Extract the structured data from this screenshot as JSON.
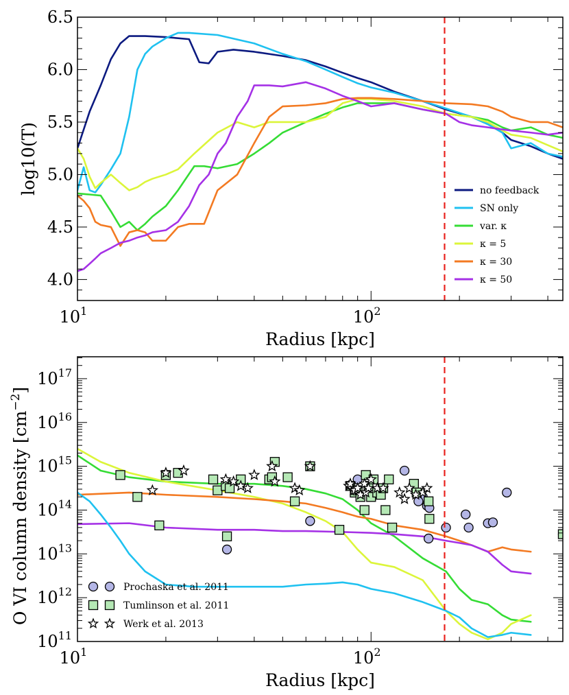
{
  "chart_data": [
    {
      "type": "line",
      "name": "temperature-profile",
      "xscale": "log",
      "xlim": [
        10,
        450
      ],
      "ylim": [
        3.8,
        6.5
      ],
      "xlabel": "Radius [kpc]",
      "ylabel": "log10(T)",
      "xticks": [
        {
          "value": 10,
          "base": "10",
          "exp": "1"
        },
        {
          "value": 100,
          "base": "10",
          "exp": "2"
        }
      ],
      "yticks": [
        {
          "value": 4.0,
          "label": "4.0"
        },
        {
          "value": 4.5,
          "label": "4.5"
        },
        {
          "value": 5.0,
          "label": "5.0"
        },
        {
          "value": 5.5,
          "label": "5.5"
        },
        {
          "value": 6.0,
          "label": "6.0"
        },
        {
          "value": 6.5,
          "label": "6.5"
        }
      ],
      "vline": {
        "x": 178,
        "color": "#e8201c"
      },
      "legend_position": "lower-right",
      "series": [
        {
          "name": "no feedback",
          "color": "#0c1a80",
          "x": [
            10,
            11,
            12,
            13,
            14,
            15,
            17,
            20,
            24,
            26,
            28,
            30,
            34,
            40,
            50,
            60,
            70,
            80,
            90,
            100,
            120,
            150,
            180,
            220,
            250,
            280,
            300,
            350,
            400,
            450
          ],
          "y": [
            5.25,
            5.6,
            5.85,
            6.1,
            6.25,
            6.32,
            6.32,
            6.31,
            6.29,
            6.07,
            6.06,
            6.17,
            6.19,
            6.17,
            6.13,
            6.09,
            6.03,
            5.97,
            5.92,
            5.88,
            5.79,
            5.7,
            5.62,
            5.55,
            5.48,
            5.4,
            5.33,
            5.27,
            5.2,
            5.15
          ]
        },
        {
          "name": "SN only",
          "color": "#1fc1f0",
          "x": [
            10,
            10.5,
            11,
            11.5,
            12,
            13,
            14,
            15,
            16,
            17,
            18,
            20,
            22,
            24,
            30,
            40,
            50,
            60,
            70,
            80,
            90,
            100,
            120,
            150,
            180,
            220,
            250,
            280,
            300,
            350,
            400,
            450
          ],
          "y": [
            4.85,
            5.07,
            4.85,
            4.83,
            4.9,
            5.05,
            5.2,
            5.55,
            6.0,
            6.15,
            6.22,
            6.3,
            6.35,
            6.35,
            6.33,
            6.25,
            6.15,
            6.08,
            6.0,
            5.93,
            5.87,
            5.83,
            5.78,
            5.7,
            5.63,
            5.55,
            5.48,
            5.4,
            5.25,
            5.3,
            5.2,
            5.17
          ]
        },
        {
          "name": "var. κ",
          "color": "#35dc35",
          "x": [
            10,
            11,
            12,
            13,
            14,
            15,
            16,
            17,
            18,
            20,
            22,
            25,
            27,
            30,
            35,
            40,
            45,
            50,
            60,
            70,
            80,
            90,
            100,
            120,
            150,
            180,
            220,
            250,
            280,
            300,
            350,
            400,
            450
          ],
          "y": [
            4.82,
            4.81,
            4.8,
            4.65,
            4.5,
            4.55,
            4.47,
            4.53,
            4.6,
            4.7,
            4.85,
            5.08,
            5.08,
            5.06,
            5.1,
            5.2,
            5.3,
            5.4,
            5.5,
            5.58,
            5.64,
            5.68,
            5.68,
            5.68,
            5.62,
            5.58,
            5.55,
            5.52,
            5.45,
            5.42,
            5.45,
            5.38,
            5.35
          ]
        },
        {
          "name": "κ = 5",
          "color": "#dcf53a",
          "x": [
            10,
            10.5,
            11,
            11.5,
            12,
            13,
            14,
            15,
            16,
            17,
            18,
            20,
            22,
            25,
            30,
            35,
            40,
            45,
            50,
            60,
            70,
            80,
            90,
            100,
            120,
            150,
            180,
            220,
            250,
            280,
            300,
            350,
            400,
            450
          ],
          "y": [
            5.25,
            5.15,
            4.98,
            4.87,
            4.92,
            5.0,
            4.92,
            4.85,
            4.88,
            4.93,
            4.96,
            5.0,
            5.05,
            5.2,
            5.4,
            5.5,
            5.45,
            5.5,
            5.5,
            5.5,
            5.55,
            5.68,
            5.72,
            5.72,
            5.7,
            5.65,
            5.58,
            5.55,
            5.5,
            5.42,
            5.38,
            5.35,
            5.28,
            5.22
          ]
        },
        {
          "name": "κ = 30",
          "color": "#f37a22",
          "x": [
            10,
            10.5,
            11,
            11.5,
            12,
            13,
            14,
            15,
            16,
            17,
            18,
            19,
            20,
            22,
            24,
            27,
            30,
            35,
            40,
            45,
            50,
            60,
            70,
            80,
            90,
            100,
            120,
            150,
            180,
            220,
            250,
            280,
            300,
            350,
            400,
            450
          ],
          "y": [
            4.8,
            4.75,
            4.68,
            4.55,
            4.52,
            4.5,
            4.32,
            4.45,
            4.47,
            4.45,
            4.37,
            4.37,
            4.37,
            4.5,
            4.53,
            4.53,
            4.85,
            5.0,
            5.3,
            5.55,
            5.65,
            5.66,
            5.68,
            5.72,
            5.73,
            5.73,
            5.72,
            5.7,
            5.68,
            5.67,
            5.65,
            5.6,
            5.55,
            5.5,
            5.5,
            5.45
          ]
        },
        {
          "name": "κ = 50",
          "color": "#a531e6",
          "x": [
            10,
            10.5,
            11,
            11.5,
            12,
            13,
            14,
            15,
            16,
            17,
            18,
            20,
            22,
            24,
            26,
            28,
            30,
            32,
            35,
            38,
            40,
            45,
            50,
            60,
            70,
            80,
            90,
            100,
            120,
            150,
            180,
            200,
            220,
            250,
            280,
            300,
            350,
            400,
            450
          ],
          "y": [
            4.08,
            4.1,
            4.15,
            4.2,
            4.25,
            4.3,
            4.35,
            4.37,
            4.4,
            4.42,
            4.45,
            4.47,
            4.55,
            4.7,
            4.9,
            5.0,
            5.2,
            5.3,
            5.55,
            5.7,
            5.85,
            5.85,
            5.84,
            5.88,
            5.82,
            5.75,
            5.7,
            5.65,
            5.68,
            5.62,
            5.58,
            5.5,
            5.47,
            5.45,
            5.43,
            5.42,
            5.4,
            5.38,
            5.4
          ]
        }
      ]
    },
    {
      "type": "line",
      "name": "ovi-column-density",
      "xscale": "log",
      "yscale": "log",
      "xlim": [
        10,
        450
      ],
      "ylim_log10": [
        11,
        17.5
      ],
      "xlabel": "Radius [kpc]",
      "ylabel": "O VI column density [cm−2]",
      "ylabel_parts": {
        "main": "O VI column density [cm",
        "sup": "−2",
        "end": "]"
      },
      "xticks": [
        {
          "value": 10,
          "base": "10",
          "exp": "1"
        },
        {
          "value": 100,
          "base": "10",
          "exp": "2"
        }
      ],
      "yticks": [
        {
          "value": 11,
          "base": "10",
          "exp": "11"
        },
        {
          "value": 12,
          "base": "10",
          "exp": "12"
        },
        {
          "value": 13,
          "base": "10",
          "exp": "13"
        },
        {
          "value": 14,
          "base": "10",
          "exp": "14"
        },
        {
          "value": 15,
          "base": "10",
          "exp": "15"
        },
        {
          "value": 16,
          "base": "10",
          "exp": "16"
        },
        {
          "value": 17,
          "base": "10",
          "exp": "17"
        }
      ],
      "vline": {
        "x": 178,
        "color": "#e8201c"
      },
      "legend_position": "lower-left",
      "series": [
        {
          "name": "var. κ",
          "color": "#35dc35",
          "x": [
            10,
            12,
            15,
            20,
            30,
            40,
            50,
            60,
            70,
            80,
            90,
            100,
            120,
            150,
            180,
            200,
            220,
            250,
            280,
            300,
            350
          ],
          "log10y": [
            15.25,
            14.9,
            14.75,
            14.65,
            14.6,
            14.6,
            14.55,
            14.48,
            14.38,
            14.25,
            14.0,
            13.7,
            13.4,
            12.9,
            12.6,
            12.2,
            11.95,
            11.85,
            11.6,
            11.5,
            11.45
          ]
        },
        {
          "name": "κ = 5",
          "color": "#dcf53a",
          "x": [
            10,
            12,
            15,
            20,
            30,
            40,
            50,
            60,
            70,
            80,
            90,
            100,
            120,
            150,
            180,
            200,
            220,
            250,
            280,
            300,
            350
          ],
          "log10y": [
            15.4,
            15.1,
            14.85,
            14.65,
            14.45,
            14.3,
            14.15,
            13.95,
            13.75,
            13.5,
            13.1,
            12.8,
            12.7,
            12.4,
            11.7,
            11.4,
            11.2,
            11.05,
            11.2,
            11.4,
            11.6
          ]
        },
        {
          "name": "κ = 30",
          "color": "#f37a22",
          "x": [
            10,
            15,
            20,
            30,
            40,
            50,
            60,
            70,
            80,
            90,
            100,
            120,
            150,
            180,
            200,
            220,
            250,
            280,
            300,
            350
          ],
          "log10y": [
            14.35,
            14.4,
            14.35,
            14.3,
            14.25,
            14.2,
            14.15,
            14.05,
            13.95,
            13.85,
            13.8,
            13.65,
            13.55,
            13.4,
            13.3,
            13.2,
            13.05,
            13.15,
            13.1,
            13.05
          ]
        },
        {
          "name": "κ = 50",
          "color": "#a531e6",
          "x": [
            10,
            15,
            20,
            30,
            40,
            50,
            60,
            80,
            100,
            120,
            150,
            180,
            200,
            220,
            250,
            280,
            300,
            350
          ],
          "log10y": [
            13.68,
            13.7,
            13.6,
            13.55,
            13.55,
            13.52,
            13.52,
            13.5,
            13.48,
            13.45,
            13.4,
            13.3,
            13.25,
            13.2,
            13.05,
            12.75,
            12.6,
            12.55
          ]
        },
        {
          "name": "SN only",
          "color": "#1fc1f0",
          "x": [
            10,
            11,
            12,
            13,
            14,
            15,
            17,
            20,
            25,
            30,
            40,
            50,
            60,
            70,
            80,
            90,
            100,
            120,
            150,
            180,
            200,
            220,
            250,
            280,
            300,
            350
          ],
          "log10y": [
            14.4,
            14.2,
            13.9,
            13.6,
            13.3,
            13.0,
            12.6,
            12.3,
            12.25,
            12.25,
            12.25,
            12.25,
            12.3,
            12.32,
            12.35,
            12.3,
            12.2,
            12.1,
            11.9,
            11.7,
            11.55,
            11.3,
            11.1,
            11.15,
            11.2,
            11.15
          ]
        }
      ],
      "observations": [
        {
          "name": "Prochaska et al. 2011",
          "marker": "circle",
          "color": "#b4b6e6",
          "x": [
            32.3,
            62,
            90,
            130,
            150,
            155,
            157,
            158,
            140,
            145,
            180,
            210,
            215,
            250,
            260,
            290,
            450
          ],
          "log10y": [
            13.1,
            13.75,
            14.7,
            14.9,
            14.3,
            14.1,
            13.35,
            14.05,
            14.55,
            14.2,
            13.6,
            13.9,
            13.6,
            13.7,
            13.72,
            14.4,
            13.45
          ]
        },
        {
          "name": "Tumlinson et al. 2011",
          "marker": "square",
          "color": "#b5e8b5",
          "x": [
            14,
            16,
            19,
            20,
            22,
            29,
            30,
            32,
            32.3,
            33,
            36,
            45,
            46,
            47,
            52,
            55,
            62,
            78,
            85,
            88,
            90,
            92,
            95,
            96,
            98,
            100,
            102,
            105,
            108,
            110,
            112,
            115,
            118,
            140,
            143,
            157,
            158,
            450
          ],
          "log10y": [
            14.8,
            14.3,
            13.65,
            14.8,
            14.85,
            14.7,
            14.45,
            14.55,
            13.4,
            14.5,
            14.7,
            14.7,
            14.75,
            15.1,
            14.75,
            14.2,
            15.0,
            13.55,
            14.55,
            14.4,
            14.45,
            14.3,
            14.0,
            14.8,
            14.55,
            14.3,
            14.7,
            14.4,
            14.35,
            14.5,
            14.0,
            14.7,
            13.6,
            14.6,
            14.4,
            14.2,
            13.8,
            13.45
          ]
        },
        {
          "name": "Werk et al. 2013",
          "marker": "star",
          "color": "#ffffff",
          "x": [
            18,
            20,
            23,
            32,
            34,
            36,
            38,
            40,
            46,
            47,
            55,
            57,
            62,
            84,
            85,
            87,
            88,
            90,
            92,
            95,
            96,
            98,
            100,
            105,
            110,
            125,
            130,
            135,
            142,
            150,
            155
          ],
          "log10y": [
            14.45,
            14.85,
            14.9,
            14.7,
            14.65,
            14.55,
            14.5,
            14.8,
            15.0,
            14.65,
            14.5,
            14.45,
            15.0,
            14.55,
            14.6,
            14.45,
            14.45,
            14.5,
            14.35,
            14.6,
            14.4,
            14.5,
            14.7,
            14.5,
            14.5,
            14.4,
            14.25,
            14.5,
            14.35,
            14.4,
            14.5
          ]
        }
      ]
    }
  ]
}
